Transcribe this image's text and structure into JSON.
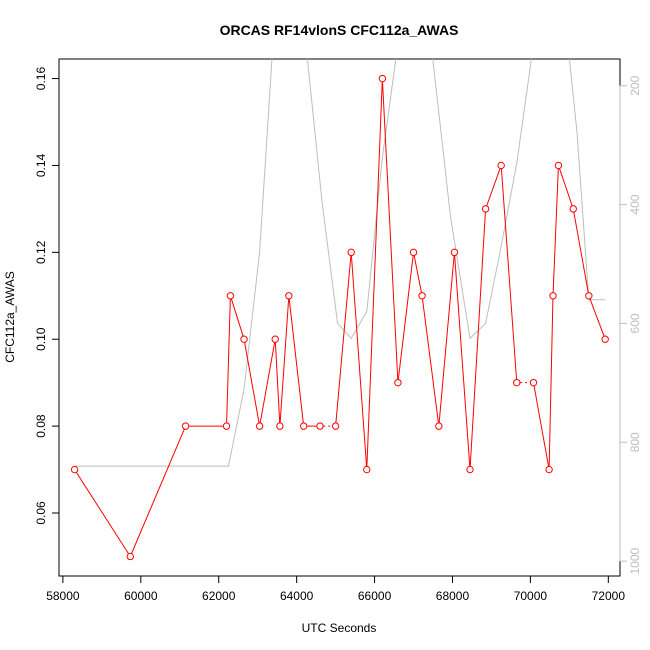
{
  "chart_data": {
    "type": "line",
    "title": "ORCAS RF14vlonS CFC112a_AWAS",
    "xlabel": "UTC Seconds",
    "ylabel": "CFC112a_AWAS",
    "xlim": [
      57900,
      72300
    ],
    "ylim": [
      0.0455,
      0.1645
    ],
    "x_ticks": [
      "58000",
      "60000",
      "62000",
      "64000",
      "66000",
      "68000",
      "70000",
      "72000"
    ],
    "y_ticks": [
      "0.06",
      "0.08",
      "0.10",
      "0.12",
      "0.14",
      "0.16"
    ],
    "series": [
      {
        "color": "#ff0000",
        "markers": "open-circle",
        "points": [
          [
            58300,
            0.07
          ],
          [
            59730,
            0.05
          ],
          [
            61150,
            0.08
          ],
          [
            62200,
            0.08
          ],
          [
            62300,
            0.11
          ],
          [
            62650,
            0.1
          ],
          [
            63050,
            0.08
          ],
          [
            63450,
            0.1
          ],
          [
            63570,
            0.08
          ],
          [
            63800,
            0.11
          ],
          [
            64180,
            0.08
          ],
          [
            64600,
            0.08
          ],
          [
            65000,
            0.08
          ],
          [
            65400,
            0.12
          ],
          [
            65800,
            0.07
          ],
          [
            66200,
            0.16
          ],
          [
            66600,
            0.09
          ],
          [
            67000,
            0.12
          ],
          [
            67220,
            0.11
          ],
          [
            67650,
            0.08
          ],
          [
            68050,
            0.12
          ],
          [
            68450,
            0.07
          ],
          [
            68850,
            0.13
          ],
          [
            69250,
            0.14
          ],
          [
            69650,
            0.09
          ],
          [
            70080,
            0.09
          ],
          [
            70480,
            0.07
          ],
          [
            70580,
            0.11
          ],
          [
            70720,
            0.14
          ],
          [
            71100,
            0.13
          ],
          [
            71500,
            0.11
          ],
          [
            71920,
            0.1
          ]
        ],
        "gaps_after_index": [
          11,
          24
        ]
      },
      {
        "color": "#bdbdbd",
        "axis": "right",
        "points": [
          [
            58300,
            840
          ],
          [
            62250,
            840
          ],
          [
            62650,
            710
          ],
          [
            63050,
            480
          ],
          [
            63450,
            70
          ],
          [
            64050,
            10
          ],
          [
            64650,
            395
          ],
          [
            65050,
            600
          ],
          [
            65400,
            625
          ],
          [
            65800,
            580
          ],
          [
            66200,
            320
          ],
          [
            66600,
            130
          ],
          [
            66950,
            100
          ],
          [
            67400,
            100
          ],
          [
            67950,
            420
          ],
          [
            68450,
            625
          ],
          [
            68850,
            600
          ],
          [
            69250,
            470
          ],
          [
            69650,
            330
          ],
          [
            70080,
            130
          ],
          [
            70500,
            50
          ],
          [
            70900,
            90
          ],
          [
            71200,
            280
          ],
          [
            71500,
            560
          ],
          [
            71920,
            560
          ]
        ]
      }
    ],
    "right_axis": {
      "ticks": [
        "200",
        "400",
        "600",
        "800",
        "1000"
      ],
      "range": [
        1025,
        155
      ]
    }
  }
}
